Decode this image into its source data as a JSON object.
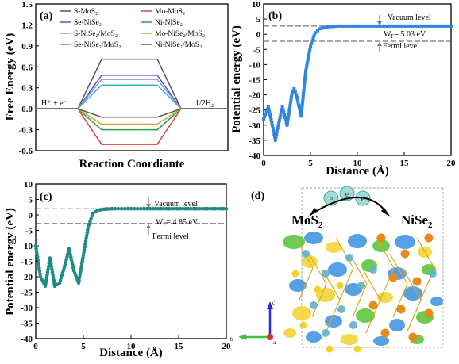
{
  "chart_data": [
    {
      "panel": "(a)",
      "type": "line",
      "title": "",
      "xlabel": "Reaction Coordiante",
      "ylabel": "Free Energy (eV)",
      "ylim": [
        -0.6,
        1.5
      ],
      "yticks": [
        "-0.6",
        "-0.3",
        "0.0",
        "0.3",
        "0.6",
        "0.9",
        "1.2",
        "1.5"
      ],
      "state_labels": [
        "H⁺ + e⁻",
        "1/2H₂"
      ],
      "x_states": [
        0,
        1,
        2
      ],
      "grid": false,
      "legend_position": "top",
      "series": [
        {
          "name": "S-MoS₂",
          "color": "#555555",
          "values": [
            0,
            0.71,
            0
          ]
        },
        {
          "name": "Mo-MoS₂",
          "color": "#d9453f",
          "values": [
            0,
            -0.51,
            0
          ]
        },
        {
          "name": "Se-NiSe₂",
          "color": "#3a60c4",
          "values": [
            0,
            0.48,
            0
          ]
        },
        {
          "name": "Ni-NiSe₂",
          "color": "#2e9a52",
          "values": [
            0,
            -0.3,
            0
          ]
        },
        {
          "name": "S-NiSe₂/MoS₂",
          "color": "#a98fd9",
          "values": [
            0,
            0.42,
            0
          ]
        },
        {
          "name": "Mo-NiSe₂/MoS₂",
          "color": "#d6a52e",
          "values": [
            0,
            -0.22,
            0
          ]
        },
        {
          "name": "Se-NiSe₂/MoS₂",
          "color": "#3bb1c9",
          "values": [
            0,
            0.34,
            0
          ]
        },
        {
          "name": "Ni-NiSe₂/MoS₂",
          "color": "#5a5a5a",
          "values": [
            0,
            -0.12,
            0
          ]
        }
      ]
    },
    {
      "panel": "(b)",
      "type": "scatter",
      "title": "",
      "xlabel": "Distance (Å)",
      "ylabel": "Potential energy (eV)",
      "xlim": [
        0,
        20
      ],
      "ylim": [
        -40,
        10
      ],
      "xticks": [
        "0",
        "5",
        "10",
        "15",
        "20"
      ],
      "yticks": [
        "-40",
        "-35",
        "-30",
        "-25",
        "-20",
        "-15",
        "-10",
        "-5",
        "0",
        "5",
        "10"
      ],
      "color": "#2f86e0",
      "vacuum_level": 2.7,
      "fermi_level": -2.3,
      "annotations": {
        "vacuum": "Vacuum level",
        "fermi": "Fermi level",
        "work_function": "W",
        "work_function_sub": "F",
        "work_function_value": "= 5.03 eV"
      },
      "x": [
        0.0,
        0.5,
        1.0,
        1.25,
        1.5,
        2.0,
        2.5,
        3.0,
        3.25,
        3.5,
        4.0,
        4.5,
        5.0,
        5.5,
        6.0,
        6.5,
        7.0,
        7.5,
        8.0,
        9.0,
        10.0,
        11.0,
        12.0,
        14.0,
        16.0,
        18.0,
        20.0
      ],
      "y": [
        -28,
        -24,
        -31,
        -35,
        -31,
        -24,
        -30,
        -20,
        -18,
        -20,
        -27,
        -12,
        -4,
        0.5,
        1.8,
        2.3,
        2.5,
        2.6,
        2.7,
        2.7,
        2.7,
        2.7,
        2.7,
        2.7,
        2.7,
        2.7,
        2.7
      ]
    },
    {
      "panel": "(c)",
      "type": "scatter",
      "title": "",
      "xlabel": "Distance (Å)",
      "ylabel": "Potential energy (eV)",
      "xlim": [
        0,
        20
      ],
      "ylim": [
        -40,
        10
      ],
      "xticks": [
        "0",
        "5",
        "10",
        "15",
        "20"
      ],
      "yticks": [
        "-40",
        "-35",
        "-30",
        "-25",
        "-20",
        "-15",
        "-10",
        "-5",
        "0",
        "5",
        "10"
      ],
      "color": "#1f8a86",
      "vacuum_level": 2.0,
      "fermi_level": -2.8,
      "annotations": {
        "vacuum": "Vacuum level",
        "fermi": "Fermi level",
        "work_function": "W",
        "work_function_sub": "F",
        "work_function_value": "= 4.85 eV"
      },
      "x": [
        0.0,
        0.5,
        1.0,
        1.5,
        2.0,
        2.5,
        3.0,
        3.5,
        4.0,
        4.5,
        5.0,
        5.5,
        6.0,
        6.5,
        7.0,
        7.5,
        8.0,
        9.0,
        10.0,
        11.0,
        12.0,
        14.0,
        16.0,
        18.0,
        20.0
      ],
      "y": [
        -10,
        -20,
        -23,
        -14,
        -23,
        -22,
        -17,
        -11,
        -18,
        -22,
        -13,
        -4,
        0.5,
        1.5,
        1.8,
        1.9,
        2.0,
        2.0,
        2.0,
        2.0,
        2.0,
        2.0,
        2.0,
        2.0,
        2.0
      ]
    }
  ],
  "panel_d": {
    "label": "(d)",
    "left_label": "MoS",
    "left_sub": "2",
    "right_label": "NiSe",
    "right_sub": "2",
    "electron_symbol": "e",
    "axis_labels": [
      "c",
      "a",
      "b"
    ],
    "colors": {
      "positive": "#f2d22c",
      "negative": "#3a8fe0",
      "green": "#55c232",
      "ni": "#e58b1c",
      "mo": "#5fb0c9"
    }
  }
}
